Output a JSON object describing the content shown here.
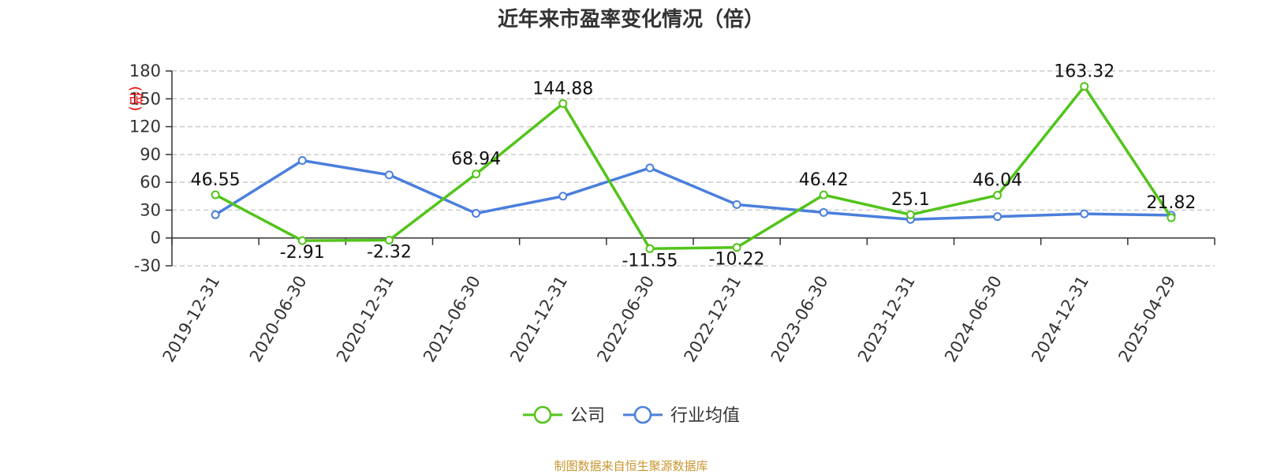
{
  "chart_data": {
    "type": "line",
    "title": "近年来市盈率变化情况（倍）",
    "ylabel": "(倍)",
    "xlabel": "",
    "ylim": [
      -30,
      180
    ],
    "yticks": [
      -30,
      0,
      30,
      60,
      90,
      120,
      150,
      180
    ],
    "categories": [
      "2019-12-31",
      "2020-06-30",
      "2020-12-31",
      "2021-06-30",
      "2021-12-31",
      "2022-06-30",
      "2022-12-31",
      "2023-06-30",
      "2023-12-31",
      "2024-06-30",
      "2024-12-31",
      "2025-04-29"
    ],
    "grid": true,
    "legend_position": "bottom",
    "series": [
      {
        "name": "公司",
        "color": "#52c41a",
        "values": [
          46.55,
          -2.91,
          -2.32,
          68.94,
          144.88,
          -11.55,
          -10.22,
          46.42,
          25.1,
          46.04,
          163.32,
          21.82
        ],
        "labels": [
          "46.55",
          "-2.91",
          "-2.32",
          "68.94",
          "144.88",
          "-11.55",
          "-10.22",
          "46.42",
          "25.1",
          "46.04",
          "163.32",
          "21.82"
        ]
      },
      {
        "name": "行业均值",
        "color": "#4a7fdc",
        "values": [
          25,
          83.5,
          68,
          26.5,
          45,
          75.5,
          36,
          27.5,
          20,
          23,
          26,
          24.5
        ]
      }
    ]
  },
  "footer": {
    "source": "制图数据来自恒生聚源数据库"
  }
}
